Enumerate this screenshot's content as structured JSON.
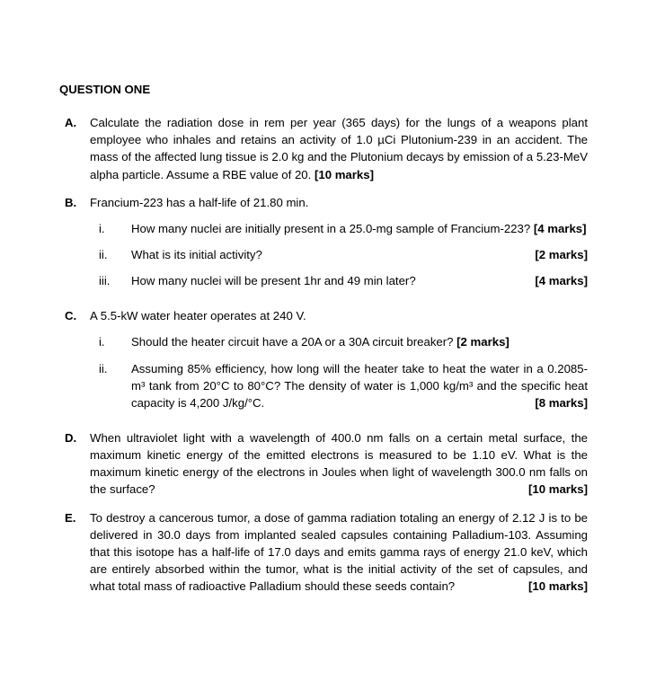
{
  "title": "QUESTION ONE",
  "A": {
    "letter": "A.",
    "text": "Calculate the radiation dose in rem per year (365 days) for the lungs of a weapons plant employee who inhales and retains an activity of 1.0 µCi Plutonium-239 in an accident. The mass of the affected lung tissue is 2.0 kg and the Plutonium decays by emission of a 5.23-MeV alpha particle. Assume a RBE value of 20.",
    "marks": "[10 marks]"
  },
  "B": {
    "letter": "B.",
    "intro": "Francium-223 has a half-life of 21.80 min.",
    "i": {
      "r": "i.",
      "text": "How many nuclei are initially present in a 25.0-mg sample of Francium-223?",
      "marks": "[4 marks]"
    },
    "ii": {
      "r": "ii.",
      "text": "What is its initial activity?",
      "marks": "[2 marks]"
    },
    "iii": {
      "r": "iii.",
      "text": "How many nuclei will be present 1hr and 49 min later?",
      "marks": "[4 marks]"
    }
  },
  "C": {
    "letter": "C.",
    "intro": "A 5.5-kW water heater operates at 240 V.",
    "i": {
      "r": "i.",
      "text": "Should the heater circuit have a 20A or a 30A circuit breaker?",
      "marks": "[2 marks]"
    },
    "ii": {
      "r": "ii.",
      "text": "Assuming 85% efficiency, how long will the heater take to heat the water in a 0.2085-m³ tank from 20°C to 80°C? The density of water is 1,000 kg/m³ and the specific heat capacity is 4,200 J/kg/°C.",
      "marks": "[8 marks]"
    }
  },
  "D": {
    "letter": "D.",
    "text": "When ultraviolet light with a wavelength of 400.0 nm falls on a certain metal surface, the maximum kinetic energy of the emitted electrons is measured to be 1.10 eV. What is the maximum kinetic energy of the electrons in Joules when light of wavelength 300.0 nm falls on the surface?",
    "marks": "[10 marks]"
  },
  "E": {
    "letter": "E.",
    "text": "To destroy a cancerous tumor, a dose of gamma radiation totaling an energy of 2.12 J is to be delivered in 30.0 days from implanted sealed capsules containing Palladium-103. Assuming that this isotope has a half-life of 17.0 days and emits gamma rays of energy 21.0 keV, which are entirely absorbed within the tumor, what is the initial activity of the set of capsules, and what total mass of radioactive Palladium should these seeds contain?",
    "marks": "[10 marks]"
  }
}
